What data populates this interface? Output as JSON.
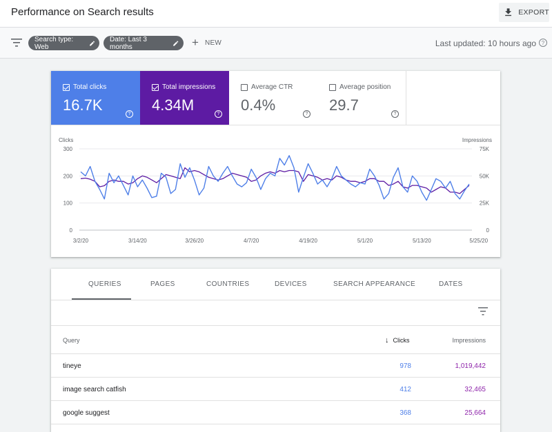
{
  "header": {
    "title": "Performance on Search results",
    "export_label": "EXPORT"
  },
  "filters": {
    "chips": [
      "Search type: Web",
      "Date: Last 3 months"
    ],
    "new_label": "NEW",
    "last_updated": "Last updated: 10 hours ago"
  },
  "metrics": {
    "clicks": {
      "label": "Total clicks",
      "value": "16.7K",
      "checked": true,
      "color": "#4e7fe8"
    },
    "impressions": {
      "label": "Total impressions",
      "value": "4.34M",
      "checked": true,
      "color": "#5d1ba3"
    },
    "ctr": {
      "label": "Average CTR",
      "value": "0.4%",
      "checked": false
    },
    "position": {
      "label": "Average position",
      "value": "29.7",
      "checked": false
    }
  },
  "chart_data": {
    "type": "line",
    "left_axis_label": "Clicks",
    "right_axis_label": "Impressions",
    "left_ticks": [
      "300",
      "200",
      "100",
      "0"
    ],
    "right_ticks": [
      "75K",
      "50K",
      "25K",
      "0"
    ],
    "ylim_left": [
      0,
      300
    ],
    "ylim_right": [
      0,
      75000
    ],
    "x_ticks": [
      "3/2/20",
      "3/14/20",
      "3/26/20",
      "4/7/20",
      "4/19/20",
      "5/1/20",
      "5/13/20",
      "5/25/20"
    ],
    "grid": true,
    "series": [
      {
        "name": "Clicks",
        "color": "#4e7fe8",
        "values": [
          215,
          200,
          235,
          180,
          150,
          115,
          210,
          175,
          200,
          165,
          130,
          200,
          160,
          185,
          155,
          120,
          125,
          210,
          195,
          135,
          150,
          245,
          195,
          230,
          185,
          130,
          155,
          235,
          200,
          180,
          210,
          235,
          200,
          170,
          160,
          175,
          225,
          195,
          150,
          190,
          210,
          200,
          265,
          240,
          275,
          230,
          140,
          195,
          245,
          210,
          170,
          185,
          160,
          190,
          235,
          200,
          185,
          170,
          160,
          175,
          170,
          225,
          200,
          165,
          115,
          135,
          195,
          230,
          160,
          140,
          200,
          180,
          140,
          110,
          150,
          190,
          180,
          155,
          180,
          135,
          115,
          145,
          170
        ]
      },
      {
        "name": "Impressions",
        "color": "#5d1ba3",
        "values": [
          47500,
          48000,
          47000,
          45000,
          40000,
          41000,
          45000,
          46250,
          45000,
          45000,
          42500,
          43750,
          47500,
          50000,
          48750,
          46250,
          43750,
          47500,
          51250,
          50000,
          48750,
          47500,
          57500,
          53750,
          55000,
          53750,
          51250,
          48750,
          47500,
          46250,
          47500,
          50000,
          52500,
          51250,
          50000,
          48750,
          45000,
          46250,
          50000,
          52500,
          53750,
          52500,
          55000,
          53750,
          55000,
          55000,
          53750,
          45000,
          51250,
          50000,
          48750,
          46250,
          47500,
          46250,
          50000,
          48750,
          46250,
          45000,
          45000,
          43750,
          45000,
          47500,
          47500,
          45000,
          45000,
          41250,
          42500,
          45000,
          40000,
          38750,
          41250,
          41250,
          40000,
          38750,
          35000,
          37500,
          40000,
          38750,
          35000,
          35000,
          33750,
          37500,
          41250
        ]
      }
    ]
  },
  "table": {
    "tabs": [
      "QUERIES",
      "PAGES",
      "COUNTRIES",
      "DEVICES",
      "SEARCH APPEARANCE",
      "DATES"
    ],
    "columns": {
      "query": "Query",
      "clicks": "Clicks",
      "impressions": "Impressions"
    },
    "rows": [
      {
        "query": "tineye",
        "clicks": "978",
        "impressions": "1,019,442"
      },
      {
        "query": "image search catfish",
        "clicks": "412",
        "impressions": "32,465"
      },
      {
        "query": "google suggest",
        "clicks": "368",
        "impressions": "25,664"
      }
    ]
  }
}
